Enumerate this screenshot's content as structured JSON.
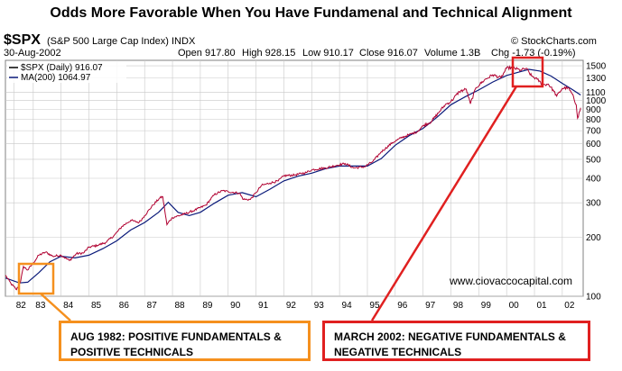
{
  "title": "Odds More Favorable When You Have Fundamenal and Technical Alignment",
  "header": {
    "symbol": "$SPX",
    "name": "(S&P 500 Large Cap Index) INDX",
    "date": "30-Aug-2002",
    "open": "Open 917.80",
    "high": "High 928.15",
    "low": "Low 910.17",
    "close": "Close 916.07",
    "volume": "Volume 1.3B",
    "chg": "Chg -1.73 (-0.19%)",
    "source": "© StockCharts.com"
  },
  "watermark": "www.ciovaccocapital.com",
  "annotations": {
    "left": {
      "line1": "AUG 1982:  POSITIVE FUNDAMENTALS &",
      "line2": "POSITIVE TECHNICALS"
    },
    "right": {
      "line1": "MARCH 2002:  NEGATIVE FUNDAMENTALS &",
      "line2": "NEGATIVE TECHNICALS"
    }
  },
  "colors": {
    "price": "#b00030",
    "ma": "#0a1a7a",
    "orange": "#f5901e",
    "red": "#e02020",
    "grid": "#c8c8c8"
  },
  "chart_data": {
    "type": "line",
    "scale": "log",
    "ylim": [
      100,
      1600
    ],
    "xlim": [
      1982.0,
      2002.75
    ],
    "y_ticks": [
      100,
      200,
      300,
      400,
      500,
      600,
      700,
      800,
      900,
      1000,
      1100,
      1300,
      1500
    ],
    "x_ticks": [
      {
        "label": "82",
        "x": 1982.3
      },
      {
        "label": "83",
        "x": 1983.0
      },
      {
        "label": "84",
        "x": 1984.0
      },
      {
        "label": "85",
        "x": 1985.0
      },
      {
        "label": "86",
        "x": 1986.0
      },
      {
        "label": "87",
        "x": 1987.0
      },
      {
        "label": "88",
        "x": 1988.0
      },
      {
        "label": "89",
        "x": 1989.0
      },
      {
        "label": "90",
        "x": 1990.0
      },
      {
        "label": "91",
        "x": 1991.0
      },
      {
        "label": "92",
        "x": 1992.0
      },
      {
        "label": "93",
        "x": 1993.0
      },
      {
        "label": "94",
        "x": 1994.0
      },
      {
        "label": "95",
        "x": 1995.0
      },
      {
        "label": "96",
        "x": 1996.0
      },
      {
        "label": "97",
        "x": 1997.0
      },
      {
        "label": "98",
        "x": 1998.0
      },
      {
        "label": "99",
        "x": 1999.0
      },
      {
        "label": "00",
        "x": 2000.0
      },
      {
        "label": "01",
        "x": 2001.0
      },
      {
        "label": "02",
        "x": 2002.0
      }
    ],
    "legend": [
      "$SPX (Daily) 916.07",
      "MA(200) 1064.97"
    ],
    "series": [
      {
        "name": "$SPX (Daily) 916.07",
        "x": [
          1982.0,
          1982.2,
          1982.4,
          1982.55,
          1982.65,
          1982.8,
          1983.0,
          1983.2,
          1983.45,
          1983.7,
          1984.0,
          1984.3,
          1984.55,
          1984.8,
          1985.0,
          1985.3,
          1985.6,
          1985.9,
          1986.2,
          1986.5,
          1986.8,
          1987.0,
          1987.3,
          1987.55,
          1987.65,
          1987.8,
          1987.85,
          1988.0,
          1988.4,
          1988.8,
          1989.2,
          1989.5,
          1989.8,
          1990.0,
          1990.4,
          1990.55,
          1990.8,
          1991.0,
          1991.2,
          1991.5,
          1991.8,
          1992.0,
          1992.4,
          1992.8,
          1993.0,
          1993.5,
          1993.9,
          1994.2,
          1994.5,
          1994.9,
          1995.2,
          1995.5,
          1995.9,
          1996.2,
          1996.5,
          1996.8,
          1997.0,
          1997.3,
          1997.6,
          1997.8,
          1998.0,
          1998.3,
          1998.55,
          1998.7,
          1998.9,
          1999.2,
          1999.5,
          1999.8,
          2000.0,
          2000.2,
          2000.5,
          2000.7,
          2000.9,
          2001.1,
          2001.3,
          2001.5,
          2001.7,
          2001.8,
          2002.0,
          2002.2,
          2002.35,
          2002.5,
          2002.55,
          2002.66
        ],
        "values": [
          128,
          116,
          108,
          120,
          142,
          136,
          148,
          162,
          168,
          160,
          162,
          152,
          165,
          166,
          178,
          182,
          188,
          204,
          228,
          244,
          238,
          258,
          292,
          318,
          322,
          232,
          238,
          252,
          262,
          275,
          292,
          330,
          346,
          342,
          336,
          312,
          312,
          338,
          368,
          378,
          388,
          412,
          416,
          428,
          442,
          452,
          466,
          476,
          452,
          458,
          488,
          546,
          608,
          642,
          668,
          692,
          742,
          780,
          880,
          952,
          985,
          1108,
          1140,
          960,
          1160,
          1268,
          1350,
          1302,
          1460,
          1470,
          1425,
          1455,
          1330,
          1280,
          1200,
          1210,
          1110,
          1050,
          1150,
          1160,
          1080,
          950,
          810,
          916
        ]
      },
      {
        "name": "MA(200) 1064.97",
        "x": [
          1982.0,
          1982.5,
          1982.8,
          1983.2,
          1983.6,
          1984.0,
          1984.5,
          1985.0,
          1985.5,
          1986.0,
          1986.5,
          1987.0,
          1987.5,
          1987.85,
          1988.2,
          1988.6,
          1989.0,
          1989.5,
          1990.0,
          1990.5,
          1991.0,
          1991.5,
          1992.0,
          1992.5,
          1993.0,
          1993.5,
          1994.0,
          1994.5,
          1995.0,
          1995.5,
          1996.0,
          1996.5,
          1997.0,
          1997.5,
          1998.0,
          1998.5,
          1999.0,
          1999.5,
          2000.0,
          2000.5,
          2000.8,
          2001.2,
          2001.6,
          2002.0,
          2002.3,
          2002.66
        ],
        "values": [
          124,
          117,
          118,
          132,
          150,
          160,
          157,
          162,
          175,
          192,
          218,
          238,
          268,
          302,
          268,
          258,
          268,
          298,
          328,
          338,
          322,
          352,
          388,
          410,
          425,
          448,
          462,
          462,
          462,
          505,
          590,
          660,
          720,
          820,
          950,
          1040,
          1130,
          1240,
          1340,
          1400,
          1440,
          1410,
          1330,
          1220,
          1150,
          1065
        ]
      }
    ]
  }
}
